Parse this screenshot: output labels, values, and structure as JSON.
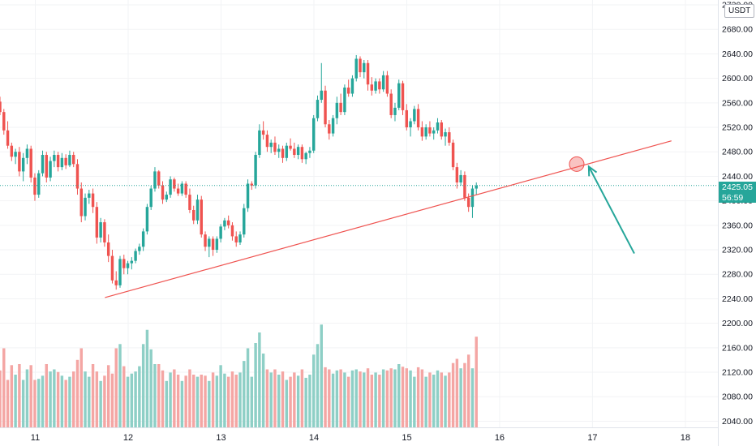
{
  "chart_data": {
    "type": "candlestick",
    "quote_currency": "USDT",
    "colors": {
      "up": "#26a69a",
      "down": "#ef5350",
      "up_volume": "#8ecfc6",
      "down_volume": "#f4a6a4",
      "trendline": "#ef5350",
      "arrow": "#26a69a"
    },
    "y_ticks": [
      "2040.00",
      "2080.00",
      "2120.00",
      "2160.00",
      "2200.00",
      "2240.00",
      "2280.00",
      "2320.00",
      "2360.00",
      "2400.00",
      "2440.00",
      "2480.00",
      "2520.00",
      "2560.00",
      "2600.00",
      "2640.00",
      "2680.00",
      "2720.00"
    ],
    "x_ticks": [
      {
        "label": "11",
        "day": 11
      },
      {
        "label": "12",
        "day": 12
      },
      {
        "label": "13",
        "day": 13
      },
      {
        "label": "14",
        "day": 14
      },
      {
        "label": "15",
        "day": 15
      },
      {
        "label": "16",
        "day": 16
      },
      {
        "label": "17",
        "day": 17
      },
      {
        "label": "18",
        "day": 18
      }
    ],
    "ylim": [
      2030,
      2728
    ],
    "xlim": [
      10.62,
      18.35
    ],
    "last_price": "2425.05",
    "countdown": "56:59",
    "trendline": {
      "from": {
        "day": 11.75,
        "price": 2242
      },
      "to": {
        "day": 17.85,
        "price": 2498
      }
    },
    "highlight_circle": {
      "day": 16.83,
      "price": 2460
    },
    "arrow": {
      "from": {
        "day": 17.45,
        "price": 2314
      },
      "to": {
        "day": 16.96,
        "price": 2456
      }
    },
    "candles_start_day": 10.62,
    "candles_step_days": 0.0417,
    "candles": [
      [
        2562,
        2570,
        2540,
        2545
      ],
      [
        2545,
        2550,
        2508,
        2515
      ],
      [
        2515,
        2530,
        2485,
        2490
      ],
      [
        2490,
        2495,
        2465,
        2472
      ],
      [
        2472,
        2485,
        2460,
        2480
      ],
      [
        2480,
        2488,
        2440,
        2448
      ],
      [
        2448,
        2478,
        2432,
        2470
      ],
      [
        2470,
        2492,
        2460,
        2485
      ],
      [
        2485,
        2490,
        2430,
        2438
      ],
      [
        2438,
        2445,
        2400,
        2410
      ],
      [
        2410,
        2450,
        2405,
        2445
      ],
      [
        2445,
        2482,
        2440,
        2475
      ],
      [
        2475,
        2480,
        2430,
        2438
      ],
      [
        2438,
        2472,
        2432,
        2465
      ],
      [
        2465,
        2482,
        2455,
        2475
      ],
      [
        2475,
        2480,
        2448,
        2455
      ],
      [
        2455,
        2478,
        2450,
        2470
      ],
      [
        2470,
        2476,
        2452,
        2458
      ],
      [
        2458,
        2482,
        2455,
        2475
      ],
      [
        2475,
        2480,
        2455,
        2460
      ],
      [
        2460,
        2468,
        2410,
        2420
      ],
      [
        2420,
        2430,
        2365,
        2375
      ],
      [
        2375,
        2412,
        2368,
        2405
      ],
      [
        2405,
        2418,
        2395,
        2412
      ],
      [
        2412,
        2420,
        2380,
        2390
      ],
      [
        2390,
        2398,
        2330,
        2340
      ],
      [
        2340,
        2372,
        2332,
        2365
      ],
      [
        2365,
        2370,
        2325,
        2332
      ],
      [
        2332,
        2345,
        2300,
        2310
      ],
      [
        2310,
        2320,
        2265,
        2270
      ],
      [
        2270,
        2285,
        2255,
        2262
      ],
      [
        2262,
        2310,
        2258,
        2305
      ],
      [
        2305,
        2312,
        2280,
        2290
      ],
      [
        2290,
        2302,
        2280,
        2298
      ],
      [
        2298,
        2308,
        2288,
        2302
      ],
      [
        2302,
        2322,
        2298,
        2318
      ],
      [
        2318,
        2330,
        2312,
        2325
      ],
      [
        2325,
        2355,
        2318,
        2350
      ],
      [
        2350,
        2395,
        2345,
        2390
      ],
      [
        2390,
        2425,
        2385,
        2420
      ],
      [
        2420,
        2455,
        2415,
        2448
      ],
      [
        2448,
        2450,
        2420,
        2425
      ],
      [
        2425,
        2432,
        2395,
        2402
      ],
      [
        2402,
        2415,
        2398,
        2410
      ],
      [
        2410,
        2440,
        2405,
        2435
      ],
      [
        2435,
        2438,
        2415,
        2420
      ],
      [
        2420,
        2428,
        2408,
        2412
      ],
      [
        2412,
        2432,
        2408,
        2428
      ],
      [
        2428,
        2432,
        2405,
        2410
      ],
      [
        2410,
        2420,
        2380,
        2385
      ],
      [
        2385,
        2392,
        2362,
        2368
      ],
      [
        2368,
        2410,
        2362,
        2402
      ],
      [
        2402,
        2408,
        2340,
        2345
      ],
      [
        2345,
        2350,
        2318,
        2325
      ],
      [
        2325,
        2342,
        2308,
        2338
      ],
      [
        2338,
        2342,
        2310,
        2320
      ],
      [
        2320,
        2342,
        2315,
        2338
      ],
      [
        2338,
        2362,
        2332,
        2358
      ],
      [
        2358,
        2372,
        2352,
        2368
      ],
      [
        2368,
        2376,
        2355,
        2360
      ],
      [
        2360,
        2365,
        2335,
        2342
      ],
      [
        2342,
        2350,
        2325,
        2332
      ],
      [
        2332,
        2350,
        2328,
        2345
      ],
      [
        2345,
        2395,
        2340,
        2388
      ],
      [
        2388,
        2435,
        2382,
        2428
      ],
      [
        2428,
        2432,
        2418,
        2425
      ],
      [
        2425,
        2480,
        2420,
        2475
      ],
      [
        2475,
        2525,
        2470,
        2515
      ],
      [
        2515,
        2530,
        2500,
        2508
      ],
      [
        2508,
        2515,
        2480,
        2488
      ],
      [
        2488,
        2500,
        2478,
        2495
      ],
      [
        2495,
        2505,
        2475,
        2480
      ],
      [
        2480,
        2492,
        2470,
        2485
      ],
      [
        2485,
        2490,
        2462,
        2470
      ],
      [
        2470,
        2495,
        2465,
        2490
      ],
      [
        2490,
        2502,
        2482,
        2485
      ],
      [
        2485,
        2495,
        2470,
        2475
      ],
      [
        2475,
        2492,
        2468,
        2488
      ],
      [
        2488,
        2492,
        2462,
        2468
      ],
      [
        2468,
        2480,
        2460,
        2478
      ],
      [
        2478,
        2488,
        2470,
        2482
      ],
      [
        2482,
        2540,
        2478,
        2535
      ],
      [
        2535,
        2572,
        2530,
        2565
      ],
      [
        2565,
        2625,
        2560,
        2580
      ],
      [
        2580,
        2588,
        2520,
        2525
      ],
      [
        2525,
        2532,
        2500,
        2510
      ],
      [
        2510,
        2540,
        2505,
        2535
      ],
      [
        2535,
        2570,
        2525,
        2560
      ],
      [
        2560,
        2575,
        2540,
        2545
      ],
      [
        2545,
        2590,
        2540,
        2585
      ],
      [
        2585,
        2598,
        2570,
        2575
      ],
      [
        2575,
        2605,
        2570,
        2600
      ],
      [
        2600,
        2638,
        2595,
        2632
      ],
      [
        2632,
        2636,
        2602,
        2610
      ],
      [
        2610,
        2630,
        2600,
        2625
      ],
      [
        2625,
        2630,
        2580,
        2590
      ],
      [
        2590,
        2602,
        2572,
        2580
      ],
      [
        2580,
        2600,
        2575,
        2595
      ],
      [
        2595,
        2600,
        2575,
        2582
      ],
      [
        2582,
        2612,
        2578,
        2605
      ],
      [
        2605,
        2612,
        2570,
        2575
      ],
      [
        2575,
        2582,
        2535,
        2540
      ],
      [
        2540,
        2560,
        2530,
        2552
      ],
      [
        2552,
        2598,
        2548,
        2592
      ],
      [
        2592,
        2596,
        2540,
        2548
      ],
      [
        2548,
        2558,
        2515,
        2520
      ],
      [
        2520,
        2535,
        2505,
        2530
      ],
      [
        2530,
        2555,
        2525,
        2550
      ],
      [
        2550,
        2558,
        2515,
        2520
      ],
      [
        2520,
        2530,
        2498,
        2505
      ],
      [
        2505,
        2525,
        2500,
        2520
      ],
      [
        2520,
        2530,
        2505,
        2510
      ],
      [
        2510,
        2520,
        2500,
        2515
      ],
      [
        2515,
        2535,
        2510,
        2528
      ],
      [
        2528,
        2532,
        2500,
        2505
      ],
      [
        2505,
        2518,
        2490,
        2512
      ],
      [
        2512,
        2520,
        2490,
        2495
      ],
      [
        2495,
        2500,
        2450,
        2455
      ],
      [
        2455,
        2462,
        2420,
        2430
      ],
      [
        2430,
        2450,
        2425,
        2442
      ],
      [
        2442,
        2448,
        2400,
        2405
      ],
      [
        2405,
        2412,
        2382,
        2390
      ],
      [
        2390,
        2425,
        2372,
        2420
      ],
      [
        2420,
        2430,
        2410,
        2425
      ]
    ],
    "volumes": [
      [
        108,
        0
      ],
      [
        150,
        0
      ],
      [
        90,
        0
      ],
      [
        118,
        0
      ],
      [
        100,
        1
      ],
      [
        120,
        0
      ],
      [
        90,
        1
      ],
      [
        110,
        1
      ],
      [
        118,
        0
      ],
      [
        90,
        0
      ],
      [
        92,
        1
      ],
      [
        98,
        1
      ],
      [
        120,
        0
      ],
      [
        106,
        1
      ],
      [
        110,
        1
      ],
      [
        105,
        0
      ],
      [
        98,
        1
      ],
      [
        90,
        0
      ],
      [
        96,
        1
      ],
      [
        106,
        0
      ],
      [
        128,
        0
      ],
      [
        150,
        0
      ],
      [
        106,
        1
      ],
      [
        96,
        1
      ],
      [
        120,
        0
      ],
      [
        106,
        0
      ],
      [
        88,
        1
      ],
      [
        98,
        0
      ],
      [
        118,
        0
      ],
      [
        102,
        0
      ],
      [
        150,
        0
      ],
      [
        158,
        1
      ],
      [
        116,
        0
      ],
      [
        96,
        1
      ],
      [
        102,
        1
      ],
      [
        106,
        1
      ],
      [
        116,
        1
      ],
      [
        158,
        1
      ],
      [
        185,
        1
      ],
      [
        148,
        1
      ],
      [
        120,
        1
      ],
      [
        120,
        0
      ],
      [
        108,
        0
      ],
      [
        88,
        1
      ],
      [
        104,
        1
      ],
      [
        110,
        0
      ],
      [
        100,
        0
      ],
      [
        88,
        1
      ],
      [
        98,
        0
      ],
      [
        110,
        0
      ],
      [
        100,
        0
      ],
      [
        96,
        1
      ],
      [
        100,
        0
      ],
      [
        98,
        0
      ],
      [
        88,
        1
      ],
      [
        104,
        0
      ],
      [
        98,
        1
      ],
      [
        118,
        1
      ],
      [
        102,
        1
      ],
      [
        96,
        0
      ],
      [
        106,
        0
      ],
      [
        100,
        0
      ],
      [
        104,
        1
      ],
      [
        126,
        1
      ],
      [
        150,
        1
      ],
      [
        96,
        1
      ],
      [
        160,
        1
      ],
      [
        180,
        1
      ],
      [
        140,
        1
      ],
      [
        110,
        0
      ],
      [
        104,
        1
      ],
      [
        110,
        0
      ],
      [
        100,
        1
      ],
      [
        106,
        0
      ],
      [
        90,
        1
      ],
      [
        96,
        0
      ],
      [
        104,
        0
      ],
      [
        98,
        1
      ],
      [
        110,
        0
      ],
      [
        94,
        1
      ],
      [
        100,
        1
      ],
      [
        138,
        1
      ],
      [
        158,
        1
      ],
      [
        195,
        1
      ],
      [
        114,
        0
      ],
      [
        110,
        0
      ],
      [
        102,
        1
      ],
      [
        108,
        1
      ],
      [
        110,
        0
      ],
      [
        104,
        1
      ],
      [
        96,
        0
      ],
      [
        108,
        1
      ],
      [
        110,
        1
      ],
      [
        106,
        0
      ],
      [
        104,
        1
      ],
      [
        112,
        0
      ],
      [
        100,
        0
      ],
      [
        104,
        1
      ],
      [
        100,
        0
      ],
      [
        110,
        1
      ],
      [
        108,
        0
      ],
      [
        112,
        0
      ],
      [
        110,
        1
      ],
      [
        120,
        1
      ],
      [
        115,
        0
      ],
      [
        112,
        0
      ],
      [
        108,
        1
      ],
      [
        96,
        1
      ],
      [
        114,
        0
      ],
      [
        110,
        0
      ],
      [
        96,
        1
      ],
      [
        104,
        0
      ],
      [
        100,
        1
      ],
      [
        108,
        1
      ],
      [
        104,
        0
      ],
      [
        98,
        1
      ],
      [
        104,
        0
      ],
      [
        122,
        0
      ],
      [
        130,
        0
      ],
      [
        112,
        1
      ],
      [
        122,
        0
      ],
      [
        138,
        0
      ],
      [
        112,
        1
      ],
      [
        172,
        0
      ]
    ]
  }
}
